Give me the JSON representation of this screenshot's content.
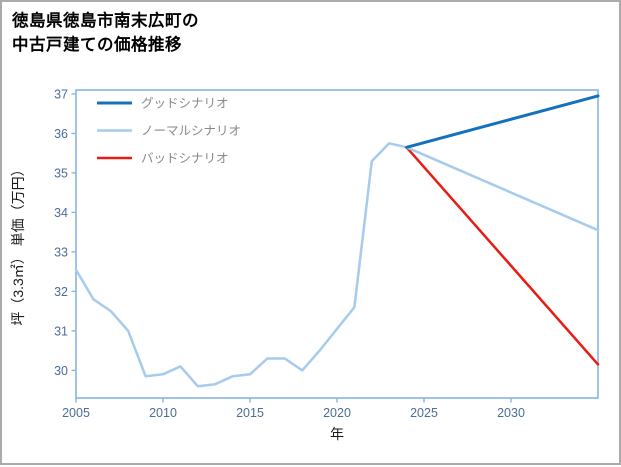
{
  "title_line1": "徳島県徳島市南末広町の",
  "title_line2": "中古戸建ての価格推移",
  "chart_data": {
    "type": "line",
    "title": "徳島県徳島市南末広町の中古戸建ての価格推移",
    "xlabel": "年",
    "ylabel": "坪（3.3㎡） 単価（万円）",
    "xlim": [
      2005,
      2035
    ],
    "ylim": [
      29.3,
      37.1
    ],
    "xticks": [
      2005,
      2010,
      2015,
      2020,
      2025,
      2030
    ],
    "yticks": [
      30,
      31,
      32,
      33,
      34,
      35,
      36,
      37
    ],
    "grid": false,
    "legend_position": "top-left-inside",
    "colors": {
      "spine": "#85b6e2",
      "tick_label": "#4a6d9b",
      "axis_label": "#1a1a1a",
      "legend_text": "#8a8a8a",
      "good": "#1472bd",
      "normal": "#a6cbec",
      "bad": "#e81c14"
    },
    "legend": [
      {
        "label": "グッドシナリオ",
        "color_key": "good",
        "width": 3
      },
      {
        "label": "ノーマルシナリオ",
        "color_key": "normal",
        "width": 2.5
      },
      {
        "label": "バッドシナリオ",
        "color_key": "bad",
        "width": 2.5
      }
    ],
    "series": [
      {
        "id": "history",
        "color_key": "normal",
        "width": 2.5,
        "x": [
          2005,
          2006,
          2007,
          2008,
          2009,
          2010,
          2011,
          2012,
          2013,
          2014,
          2015,
          2016,
          2017,
          2018,
          2019,
          2020,
          2021,
          2022,
          2023,
          2024
        ],
        "values": [
          32.55,
          31.8,
          31.5,
          31.0,
          29.85,
          29.9,
          30.1,
          29.6,
          29.65,
          29.85,
          29.9,
          30.3,
          30.3,
          30.0,
          30.5,
          31.05,
          31.6,
          35.3,
          35.75,
          35.65
        ]
      },
      {
        "id": "bad-scenario",
        "color_key": "bad",
        "width": 2.5,
        "x": [
          2024,
          2035
        ],
        "values": [
          35.65,
          30.15
        ]
      },
      {
        "id": "normal-scenario",
        "color_key": "normal",
        "width": 2.5,
        "x": [
          2024,
          2035
        ],
        "values": [
          35.65,
          33.55
        ]
      },
      {
        "id": "good-scenario",
        "color_key": "good",
        "width": 3,
        "x": [
          2024,
          2035
        ],
        "values": [
          35.65,
          36.95
        ]
      }
    ]
  }
}
